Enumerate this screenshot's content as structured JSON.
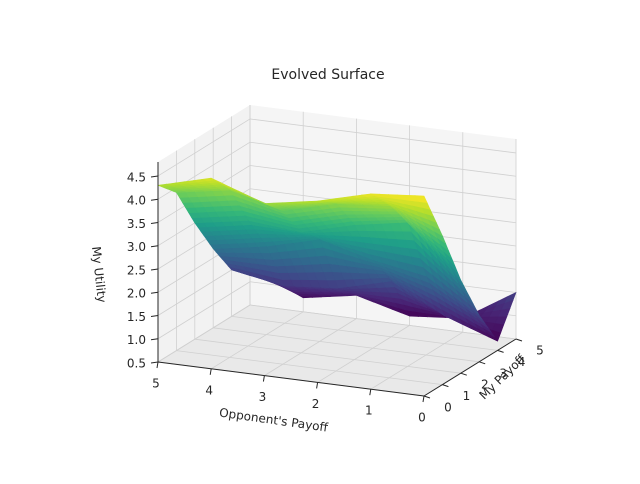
{
  "chart_data": {
    "type": "surface3d",
    "title": "Evolved Surface",
    "xlabel": "My Payoff",
    "ylabel": "Opponent's Payoff",
    "zlabel": "My Utility",
    "x_ticks": [
      "0",
      "1",
      "2",
      "3",
      "4",
      "5"
    ],
    "y_ticks": [
      "0",
      "1",
      "2",
      "3",
      "4",
      "5"
    ],
    "z_ticks": [
      "0.5",
      "1.0",
      "1.5",
      "2.0",
      "2.5",
      "3.0",
      "3.5",
      "4.0",
      "4.5"
    ],
    "xlim": [
      0,
      5
    ],
    "ylim": [
      0,
      5
    ],
    "zlim": [
      0.5,
      4.8
    ],
    "colormap": "viridis",
    "grid": true,
    "grid_x": [
      0,
      1,
      2,
      3,
      4,
      5
    ],
    "grid_y": [
      0,
      1,
      2,
      3,
      4,
      5
    ],
    "z_values": [
      [
        4.8,
        4.7,
        4.4,
        4.2,
        4.6,
        4.3
      ],
      [
        3.7,
        4.2,
        4.1,
        3.8,
        4.1,
        3.9
      ],
      [
        2.5,
        3.6,
        3.4,
        3.1,
        3.2,
        3.0
      ],
      [
        1.5,
        2.2,
        2.4,
        2.7,
        2.4,
        2.2
      ],
      [
        0.7,
        1.1,
        1.7,
        1.4,
        1.3,
        1.5
      ],
      [
        1.5,
        0.8,
        0.7,
        1.0,
        0.8,
        1.3
      ]
    ]
  }
}
